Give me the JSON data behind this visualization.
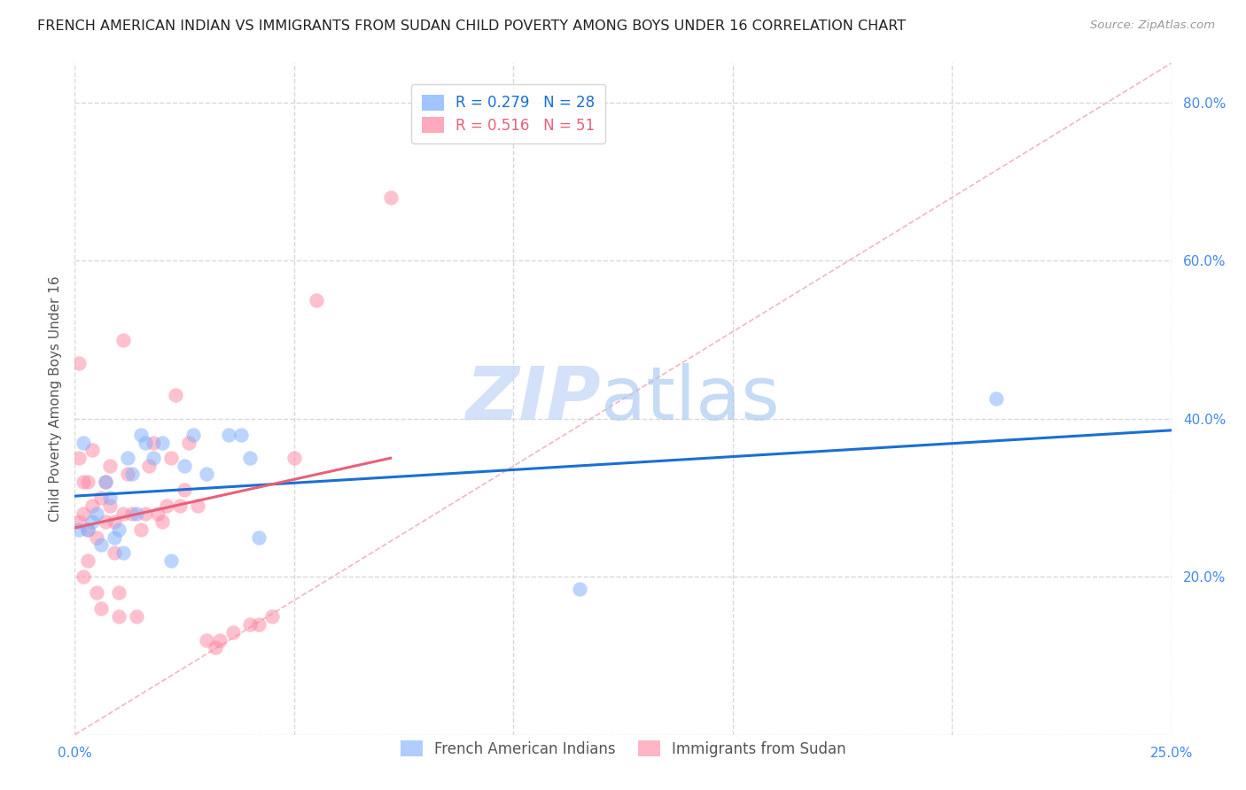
{
  "title": "FRENCH AMERICAN INDIAN VS IMMIGRANTS FROM SUDAN CHILD POVERTY AMONG BOYS UNDER 16 CORRELATION CHART",
  "source_text": "Source: ZipAtlas.com",
  "ylabel": "Child Poverty Among Boys Under 16",
  "xmin": 0.0,
  "xmax": 0.25,
  "ymin": 0.0,
  "ymax": 0.85,
  "yticks": [
    0.0,
    0.2,
    0.4,
    0.6,
    0.8
  ],
  "xticks": [
    0.0,
    0.05,
    0.1,
    0.15,
    0.2,
    0.25
  ],
  "blue_color": "#7aadff",
  "pink_color": "#ff85a0",
  "blue_line_color": "#1a6fd4",
  "pink_line_color": "#e8607a",
  "diag_color": "#f0b8c0",
  "blue_R": 0.279,
  "blue_N": 28,
  "pink_R": 0.516,
  "pink_N": 51,
  "blue_label": "French American Indians",
  "pink_label": "Immigrants from Sudan",
  "watermark_zip": "ZIP",
  "watermark_atlas": "atlas",
  "blue_scatter_x": [
    0.001,
    0.002,
    0.003,
    0.004,
    0.005,
    0.006,
    0.007,
    0.008,
    0.009,
    0.01,
    0.011,
    0.012,
    0.013,
    0.014,
    0.015,
    0.016,
    0.018,
    0.02,
    0.022,
    0.025,
    0.027,
    0.03,
    0.035,
    0.038,
    0.04,
    0.042,
    0.115,
    0.21
  ],
  "blue_scatter_y": [
    0.26,
    0.37,
    0.26,
    0.27,
    0.28,
    0.24,
    0.32,
    0.3,
    0.25,
    0.26,
    0.23,
    0.35,
    0.33,
    0.28,
    0.38,
    0.37,
    0.35,
    0.37,
    0.22,
    0.34,
    0.38,
    0.33,
    0.38,
    0.38,
    0.35,
    0.25,
    0.185,
    0.425
  ],
  "pink_scatter_x": [
    0.001,
    0.001,
    0.001,
    0.002,
    0.002,
    0.002,
    0.003,
    0.003,
    0.003,
    0.004,
    0.004,
    0.005,
    0.005,
    0.006,
    0.006,
    0.007,
    0.007,
    0.008,
    0.008,
    0.009,
    0.009,
    0.01,
    0.01,
    0.011,
    0.011,
    0.012,
    0.013,
    0.014,
    0.015,
    0.016,
    0.017,
    0.018,
    0.019,
    0.02,
    0.021,
    0.022,
    0.023,
    0.024,
    0.025,
    0.026,
    0.028,
    0.03,
    0.032,
    0.033,
    0.036,
    0.04,
    0.042,
    0.045,
    0.05,
    0.055,
    0.072
  ],
  "pink_scatter_y": [
    0.47,
    0.35,
    0.27,
    0.28,
    0.32,
    0.2,
    0.26,
    0.32,
    0.22,
    0.29,
    0.36,
    0.25,
    0.18,
    0.16,
    0.3,
    0.27,
    0.32,
    0.29,
    0.34,
    0.23,
    0.27,
    0.15,
    0.18,
    0.5,
    0.28,
    0.33,
    0.28,
    0.15,
    0.26,
    0.28,
    0.34,
    0.37,
    0.28,
    0.27,
    0.29,
    0.35,
    0.43,
    0.29,
    0.31,
    0.37,
    0.29,
    0.12,
    0.11,
    0.12,
    0.13,
    0.14,
    0.14,
    0.15,
    0.35,
    0.55,
    0.68
  ],
  "title_fontsize": 11.5,
  "axis_label_fontsize": 11,
  "tick_fontsize": 11,
  "legend_fontsize": 12,
  "watermark_fontsize": 60,
  "bg_color": "#ffffff",
  "grid_color": "#d8d8d8",
  "right_tick_color": "#4488ee",
  "bottom_tick_color": "#4488ee"
}
